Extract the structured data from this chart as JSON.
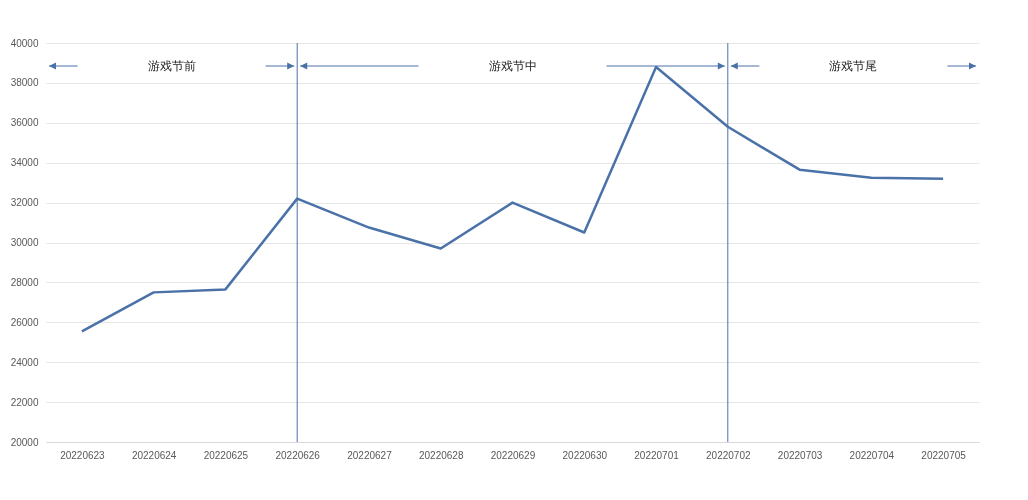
{
  "chart_data": {
    "type": "line",
    "categories": [
      "20220623",
      "20220624",
      "20220625",
      "20220626",
      "20220627",
      "20220628",
      "20220629",
      "20220630",
      "20220701",
      "20220702",
      "20220703",
      "20220704",
      "20220705"
    ],
    "series": [
      {
        "color": "#4a72a8",
        "values": [
          25550,
          27500,
          27650,
          32200,
          30750,
          29700,
          32000,
          30500,
          38800,
          35800,
          33650,
          33250,
          33200
        ]
      }
    ],
    "ylim": [
      20000,
      40000
    ],
    "yticks": [
      20000,
      22000,
      24000,
      26000,
      28000,
      30000,
      32000,
      34000,
      36000,
      38000,
      40000
    ],
    "grid": "y",
    "legend": false,
    "marker": "none",
    "line_style": "solid",
    "ref_lines": [
      {
        "axis": "x",
        "value": "20220626",
        "label": null,
        "color": "#4a72a8"
      },
      {
        "axis": "x",
        "value": "20220702",
        "label": null,
        "color": "#4a72a8"
      }
    ],
    "annotations": [
      "游戏节前",
      "游戏节中",
      "游戏节尾"
    ]
  }
}
